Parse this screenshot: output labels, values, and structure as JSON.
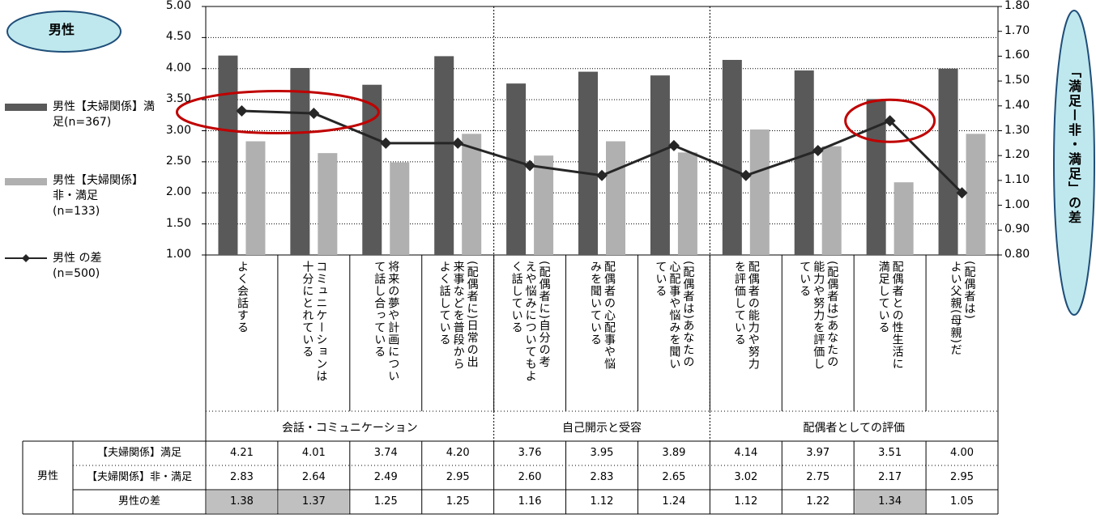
{
  "title_badge": "男性",
  "right_axis_title": "「満足ー非・満足」の差",
  "legend": [
    {
      "name": "男性【夫婦関係】満足(n=367)",
      "color": "#595959",
      "kind": "bar"
    },
    {
      "name": "男性【夫婦関係】非・満足(n=133)",
      "color": "#b0b0b0",
      "kind": "bar"
    },
    {
      "name": "男性 の差(n=500)",
      "color": "#262626",
      "kind": "line"
    }
  ],
  "chart_data": {
    "type": "bar",
    "categories": [
      "よく会話する",
      "コミュニケーションは十分にとれている",
      "将来の夢や計画について話し合っている",
      "(配偶者に)日常の出来事などを普段からよく話している",
      "(配偶者に)自分の考えや悩みについてもよく話している",
      "配偶者の心配事や悩みを聞いている",
      "(配偶者は)あなたの心配事や悩みを聞いている",
      "配偶者の能力や努力を評価している",
      "(配偶者は)あなたの能力や努力を評価している",
      "配偶者との性生活に満足している",
      "(配偶者は)よい父親(母親)だ"
    ],
    "category_lines": [
      [
        "よく会話する"
      ],
      [
        "コミュニケーションは",
        "十分にとれている"
      ],
      [
        "将来の夢や計画につい",
        "て話し合っている"
      ],
      [
        "(配偶者に)日常の出",
        "来事などを普段から",
        "よく話している"
      ],
      [
        "(配偶者に)自分の考",
        "えや悩みについてもよ",
        "く話している"
      ],
      [
        "配偶者の心配事や悩",
        "みを聞いている"
      ],
      [
        "(配偶者は)あなたの",
        "心配事や悩みを聞い",
        "ている"
      ],
      [
        "配偶者の能力や努力",
        "を評価している"
      ],
      [
        "(配偶者は)あなたの",
        "能力や努力を評価し",
        "ている"
      ],
      [
        "配偶者との性生活に",
        "満足している"
      ],
      [
        "(配偶者は)",
        "よい父親(母親)だ"
      ]
    ],
    "groups": [
      {
        "label": "会話・コミュニケーション",
        "start": 0,
        "end": 3
      },
      {
        "label": "自己開示と受容",
        "start": 4,
        "end": 6
      },
      {
        "label": "配偶者としての評価",
        "start": 7,
        "end": 10
      }
    ],
    "series": [
      {
        "name": "男性【夫婦関係】満足(n=367)",
        "type": "bar",
        "axis": "left",
        "values": [
          4.21,
          4.01,
          3.74,
          4.2,
          3.76,
          3.95,
          3.89,
          4.14,
          3.97,
          3.51,
          4.0
        ]
      },
      {
        "name": "男性【夫婦関係】非・満足(n=133)",
        "type": "bar",
        "axis": "left",
        "values": [
          2.83,
          2.64,
          2.49,
          2.95,
          2.6,
          2.83,
          2.65,
          3.02,
          2.75,
          2.17,
          2.95
        ]
      },
      {
        "name": "男性 の差(n=500)",
        "type": "line",
        "axis": "right",
        "values": [
          1.38,
          1.37,
          1.25,
          1.25,
          1.16,
          1.12,
          1.24,
          1.12,
          1.22,
          1.34,
          1.05
        ]
      }
    ],
    "left_axis": {
      "min": 1.0,
      "max": 5.0,
      "step": 0.5,
      "ticks": [
        "1.00",
        "1.50",
        "2.00",
        "2.50",
        "3.00",
        "3.50",
        "4.00",
        "4.50",
        "5.00"
      ]
    },
    "right_axis": {
      "min": 0.8,
      "max": 1.8,
      "step": 0.1,
      "ticks": [
        "0.80",
        "0.90",
        "1.00",
        "1.10",
        "1.20",
        "1.30",
        "1.40",
        "1.50",
        "1.60",
        "1.70",
        "1.80"
      ]
    },
    "grid": true,
    "highlight_ellipses_on": [
      [
        0,
        1
      ],
      [
        9
      ]
    ]
  },
  "table": {
    "gender_label": "男性",
    "rows": [
      {
        "label": "【夫婦関係】満足",
        "values": [
          "4.21",
          "4.01",
          "3.74",
          "4.20",
          "3.76",
          "3.95",
          "3.89",
          "4.14",
          "3.97",
          "3.51",
          "4.00"
        ]
      },
      {
        "label": "【夫婦関係】非・満足",
        "values": [
          "2.83",
          "2.64",
          "2.49",
          "2.95",
          "2.60",
          "2.83",
          "2.65",
          "3.02",
          "2.75",
          "2.17",
          "2.95"
        ]
      },
      {
        "label": "男性の差",
        "values": [
          "1.38",
          "1.37",
          "1.25",
          "1.25",
          "1.16",
          "1.12",
          "1.24",
          "1.12",
          "1.22",
          "1.34",
          "1.05"
        ],
        "highlighted": [
          0,
          1,
          9
        ],
        "highlight_color": "#c0c0c0"
      }
    ]
  }
}
